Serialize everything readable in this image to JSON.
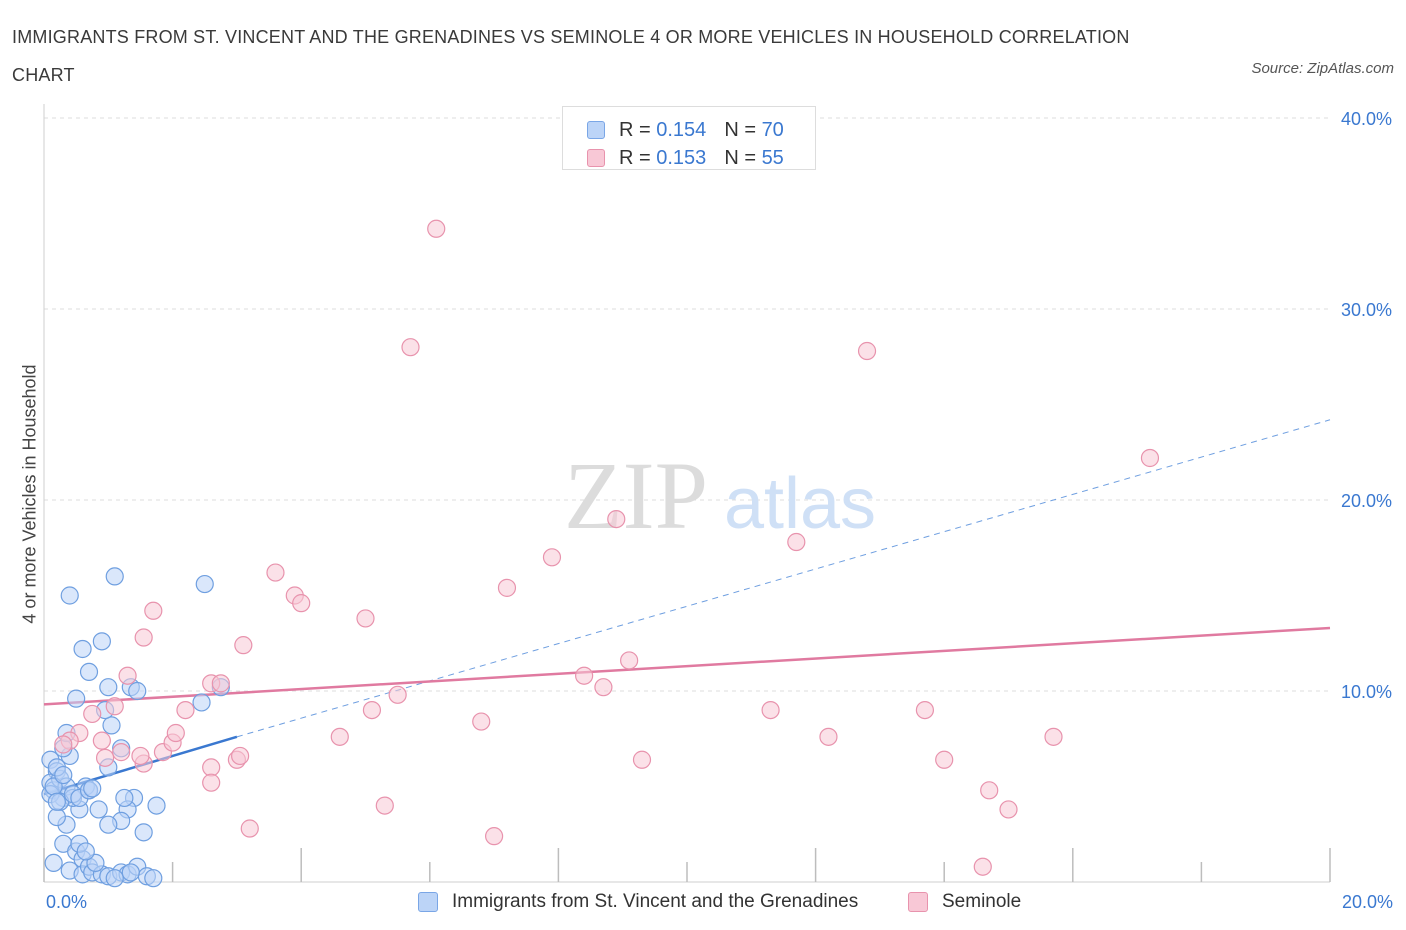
{
  "title": "IMMIGRANTS FROM ST. VINCENT AND THE GRENADINES VS SEMINOLE 4 OR MORE VEHICLES IN HOUSEHOLD CORRELATION CHART",
  "source": "Source: ZipAtlas.com",
  "watermark": {
    "zip": "ZIP",
    "atlas": "atlas"
  },
  "legend": {
    "series1": {
      "r_label": "R = ",
      "r_value": "0.154",
      "n_label": "N = ",
      "n_value": "70"
    },
    "series2": {
      "r_label": "R = ",
      "r_value": "0.153",
      "n_label": "N = ",
      "n_value": "55"
    }
  },
  "chart_data": {
    "type": "scatter",
    "title": "IMMIGRANTS FROM ST. VINCENT AND THE GRENADINES VS SEMINOLE 4 OR MORE VEHICLES IN HOUSEHOLD CORRELATION CHART",
    "xlabel": "",
    "ylabel": "4 or more Vehicles in Household",
    "xlim": [
      0,
      20
    ],
    "ylim": [
      0,
      40
    ],
    "x_tick_labels": [
      "0.0%",
      "20.0%"
    ],
    "y_ticks": [
      10,
      20,
      30,
      40
    ],
    "y_tick_labels": [
      "10.0%",
      "20.0%",
      "30.0%",
      "40.0%"
    ],
    "grid": true,
    "legend_position": "top-center",
    "colors": {
      "series1": "#3a78d0",
      "series2": "#e07aa0"
    },
    "series": [
      {
        "name": "Immigrants from St. Vincent and the Grenadines",
        "fill": "#bcd4f7",
        "stroke": "#6f9fe0",
        "trend": {
          "x0": 0,
          "y0": 4.6,
          "x1": 3.0,
          "y1": 7.6,
          "extended_to": {
            "x": 20,
            "y": 24.2
          }
        },
        "points": [
          [
            0.1,
            6.4
          ],
          [
            0.2,
            5.8
          ],
          [
            0.1,
            5.2
          ],
          [
            0.15,
            4.8
          ],
          [
            0.3,
            4.4
          ],
          [
            0.1,
            4.6
          ],
          [
            0.25,
            5.4
          ],
          [
            0.35,
            5.0
          ],
          [
            0.4,
            6.6
          ],
          [
            0.2,
            6.0
          ],
          [
            0.3,
            7.0
          ],
          [
            0.35,
            7.8
          ],
          [
            0.5,
            9.6
          ],
          [
            0.6,
            12.2
          ],
          [
            0.7,
            11.0
          ],
          [
            0.4,
            15.0
          ],
          [
            1.1,
            16.0
          ],
          [
            0.9,
            12.6
          ],
          [
            1.0,
            10.2
          ],
          [
            1.05,
            8.2
          ],
          [
            0.95,
            9.0
          ],
          [
            1.0,
            6.0
          ],
          [
            1.2,
            7.0
          ],
          [
            1.35,
            10.2
          ],
          [
            1.45,
            10.0
          ],
          [
            1.4,
            4.4
          ],
          [
            1.3,
            3.8
          ],
          [
            1.25,
            4.4
          ],
          [
            1.2,
            3.2
          ],
          [
            1.0,
            3.0
          ],
          [
            0.85,
            3.8
          ],
          [
            0.7,
            4.8
          ],
          [
            0.65,
            5.0
          ],
          [
            0.55,
            3.8
          ],
          [
            0.45,
            4.4
          ],
          [
            0.35,
            3.0
          ],
          [
            0.2,
            3.4
          ],
          [
            0.3,
            2.0
          ],
          [
            0.5,
            1.6
          ],
          [
            0.6,
            1.2
          ],
          [
            0.15,
            1.0
          ],
          [
            0.4,
            0.6
          ],
          [
            0.6,
            0.4
          ],
          [
            0.7,
            0.8
          ],
          [
            0.75,
            0.5
          ],
          [
            0.9,
            0.4
          ],
          [
            1.0,
            0.3
          ],
          [
            1.2,
            0.5
          ],
          [
            1.3,
            0.4
          ],
          [
            1.45,
            0.8
          ],
          [
            1.6,
            0.3
          ],
          [
            1.7,
            0.2
          ],
          [
            1.35,
            0.5
          ],
          [
            0.8,
            1.0
          ],
          [
            0.55,
            2.0
          ],
          [
            0.65,
            1.6
          ],
          [
            0.25,
            4.2
          ],
          [
            0.45,
            4.6
          ],
          [
            0.55,
            4.4
          ],
          [
            0.7,
            4.8
          ],
          [
            0.75,
            4.9
          ],
          [
            0.15,
            5.0
          ],
          [
            1.55,
            2.6
          ],
          [
            1.75,
            4.0
          ],
          [
            2.5,
            15.6
          ],
          [
            2.45,
            9.4
          ],
          [
            2.75,
            10.2
          ],
          [
            0.3,
            5.6
          ],
          [
            0.2,
            4.2
          ],
          [
            1.1,
            0.2
          ]
        ]
      },
      {
        "name": "Seminole",
        "fill": "#f8c8d6",
        "stroke": "#e893ad",
        "trend": {
          "x0": 0,
          "y0": 9.3,
          "x1": 20,
          "y1": 13.3
        },
        "points": [
          [
            6.1,
            34.2
          ],
          [
            5.7,
            28.0
          ],
          [
            12.8,
            27.8
          ],
          [
            17.2,
            22.2
          ],
          [
            8.9,
            19.0
          ],
          [
            7.9,
            17.0
          ],
          [
            11.7,
            17.8
          ],
          [
            7.2,
            15.4
          ],
          [
            3.6,
            16.2
          ],
          [
            3.9,
            15.0
          ],
          [
            4.0,
            14.6
          ],
          [
            5.0,
            13.8
          ],
          [
            3.1,
            12.4
          ],
          [
            1.7,
            14.2
          ],
          [
            1.55,
            12.8
          ],
          [
            1.3,
            10.8
          ],
          [
            2.6,
            10.4
          ],
          [
            2.75,
            10.4
          ],
          [
            9.1,
            11.6
          ],
          [
            8.4,
            10.8
          ],
          [
            8.7,
            10.2
          ],
          [
            5.5,
            9.8
          ],
          [
            5.1,
            9.0
          ],
          [
            2.2,
            9.0
          ],
          [
            1.1,
            9.2
          ],
          [
            0.75,
            8.8
          ],
          [
            0.55,
            7.8
          ],
          [
            0.4,
            7.4
          ],
          [
            0.3,
            7.2
          ],
          [
            0.9,
            7.4
          ],
          [
            1.2,
            6.8
          ],
          [
            1.55,
            6.2
          ],
          [
            1.85,
            6.8
          ],
          [
            2.0,
            7.3
          ],
          [
            2.05,
            7.8
          ],
          [
            3.0,
            6.4
          ],
          [
            3.05,
            6.6
          ],
          [
            2.6,
            6.0
          ],
          [
            2.6,
            5.2
          ],
          [
            4.6,
            7.6
          ],
          [
            6.8,
            8.4
          ],
          [
            11.3,
            9.0
          ],
          [
            12.2,
            7.6
          ],
          [
            13.7,
            9.0
          ],
          [
            14.0,
            6.4
          ],
          [
            15.7,
            7.6
          ],
          [
            9.3,
            6.4
          ],
          [
            14.7,
            4.8
          ],
          [
            15.0,
            3.8
          ],
          [
            14.6,
            0.8
          ],
          [
            7.0,
            2.4
          ],
          [
            5.3,
            4.0
          ],
          [
            3.2,
            2.8
          ],
          [
            0.95,
            6.5
          ],
          [
            1.5,
            6.6
          ]
        ]
      }
    ]
  }
}
